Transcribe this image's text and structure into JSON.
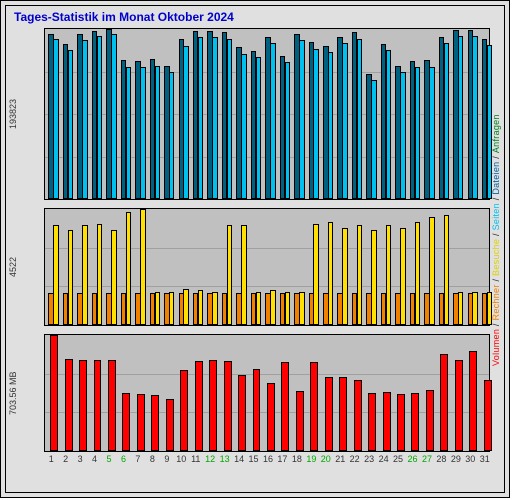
{
  "title": "Tages-Statistik im Monat Oktober 2024",
  "days": 31,
  "green_days": [
    5,
    6,
    12,
    13,
    19,
    20,
    26,
    27
  ],
  "xlabels": [
    "1",
    "2",
    "3",
    "4",
    "5",
    "6",
    "7",
    "8",
    "9",
    "10",
    "11",
    "12",
    "13",
    "14",
    "15",
    "16",
    "17",
    "18",
    "19",
    "20",
    "21",
    "22",
    "23",
    "24",
    "25",
    "26",
    "27",
    "28",
    "29",
    "30",
    "31"
  ],
  "panel1": {
    "ylabel": "193823",
    "max": 193823,
    "grid_count": 4,
    "back_color": "#006080",
    "front_color": "#00c0f0",
    "back": [
      188000,
      177000,
      188000,
      192000,
      193823,
      158000,
      157000,
      160000,
      152000,
      183000,
      192000,
      191000,
      190000,
      173000,
      169000,
      185000,
      163000,
      188000,
      179000,
      175000,
      185000,
      190000,
      143000,
      177000,
      152000,
      157000,
      158000,
      185000,
      193000,
      193000,
      183000
    ],
    "front": [
      182000,
      170000,
      181000,
      186000,
      188000,
      150000,
      150000,
      152000,
      145000,
      175000,
      185000,
      185000,
      183000,
      165000,
      162000,
      178000,
      156000,
      181000,
      171000,
      168000,
      178000,
      183000,
      136000,
      170000,
      145000,
      150000,
      150000,
      178000,
      186000,
      186000,
      176000
    ]
  },
  "panel2": {
    "ylabel": "4522",
    "max": 4522,
    "grid_count": 3,
    "back_color": "#f08000",
    "front_color": "#ffe000",
    "back": [
      1250,
      1250,
      1250,
      1250,
      1250,
      1250,
      1250,
      1250,
      1250,
      1250,
      1250,
      1250,
      1250,
      1250,
      1250,
      1250,
      1250,
      1250,
      1250,
      1250,
      1250,
      1250,
      1250,
      1250,
      1250,
      1250,
      1250,
      1250,
      1250,
      1250,
      1250
    ],
    "front": [
      3900,
      3700,
      3900,
      3950,
      3700,
      4400,
      4522,
      1300,
      1300,
      1400,
      1350,
      1300,
      3900,
      3900,
      1300,
      1350,
      1300,
      1300,
      3950,
      4000,
      3800,
      3900,
      3700,
      3900,
      3800,
      4000,
      4200,
      4300,
      1300,
      1300,
      1300
    ]
  },
  "panel3": {
    "ylabel": "703.56 MB",
    "max": 703.56,
    "grid_count": 3,
    "color": "#ff0000",
    "data": [
      703,
      560,
      555,
      550,
      555,
      350,
      345,
      340,
      315,
      490,
      545,
      555,
      545,
      460,
      500,
      415,
      540,
      365,
      540,
      450,
      450,
      430,
      350,
      355,
      345,
      350,
      370,
      590,
      555,
      605,
      430
    ]
  },
  "right_legend": [
    {
      "text": "Volumen",
      "color": "#ff0000"
    },
    {
      "text": "Rechner",
      "color": "#f08000"
    },
    {
      "text": "Besuche",
      "color": "#e0d000"
    },
    {
      "text": "Seiten",
      "color": "#00c0f0"
    },
    {
      "text": "Dateien",
      "color": "#0060a0"
    },
    {
      "text": "Anfragen",
      "color": "#008020"
    }
  ],
  "sep": " / ",
  "sep_color": "#333"
}
